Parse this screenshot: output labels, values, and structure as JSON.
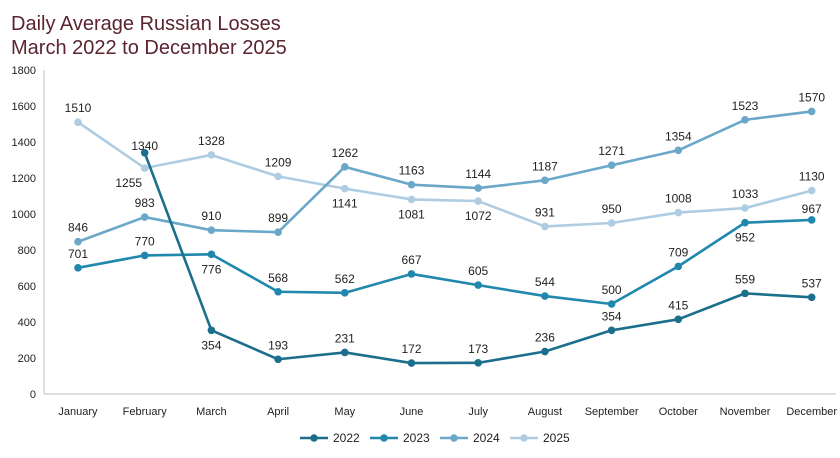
{
  "chart_data": {
    "type": "line",
    "title_line1": "Daily Average Russian Losses",
    "title_line2": "March 2022 to December 2025",
    "categories": [
      "January",
      "February",
      "March",
      "April",
      "May",
      "June",
      "July",
      "August",
      "September",
      "October",
      "November",
      "December"
    ],
    "ylim": [
      0,
      1800
    ],
    "yticks": [
      0,
      200,
      400,
      600,
      800,
      1000,
      1200,
      1400,
      1600,
      1800
    ],
    "grid": false,
    "legend_position": "bottom",
    "series": [
      {
        "name": "2022",
        "color": "#1b6f8c",
        "values": [
          null,
          1340,
          354,
          193,
          231,
          172,
          173,
          236,
          354,
          415,
          559,
          537
        ]
      },
      {
        "name": "2023",
        "color": "#2188ad",
        "values": [
          701,
          770,
          776,
          568,
          562,
          667,
          605,
          544,
          500,
          709,
          952,
          967
        ]
      },
      {
        "name": "2024",
        "color": "#6ba7c9",
        "values": [
          846,
          983,
          910,
          899,
          1262,
          1163,
          1144,
          1187,
          1271,
          1354,
          1523,
          1570
        ]
      },
      {
        "name": "2025",
        "color": "#aecde3",
        "values": [
          1510,
          1255,
          1328,
          1209,
          1141,
          1081,
          1072,
          931,
          950,
          1008,
          1033,
          1130
        ]
      }
    ]
  }
}
